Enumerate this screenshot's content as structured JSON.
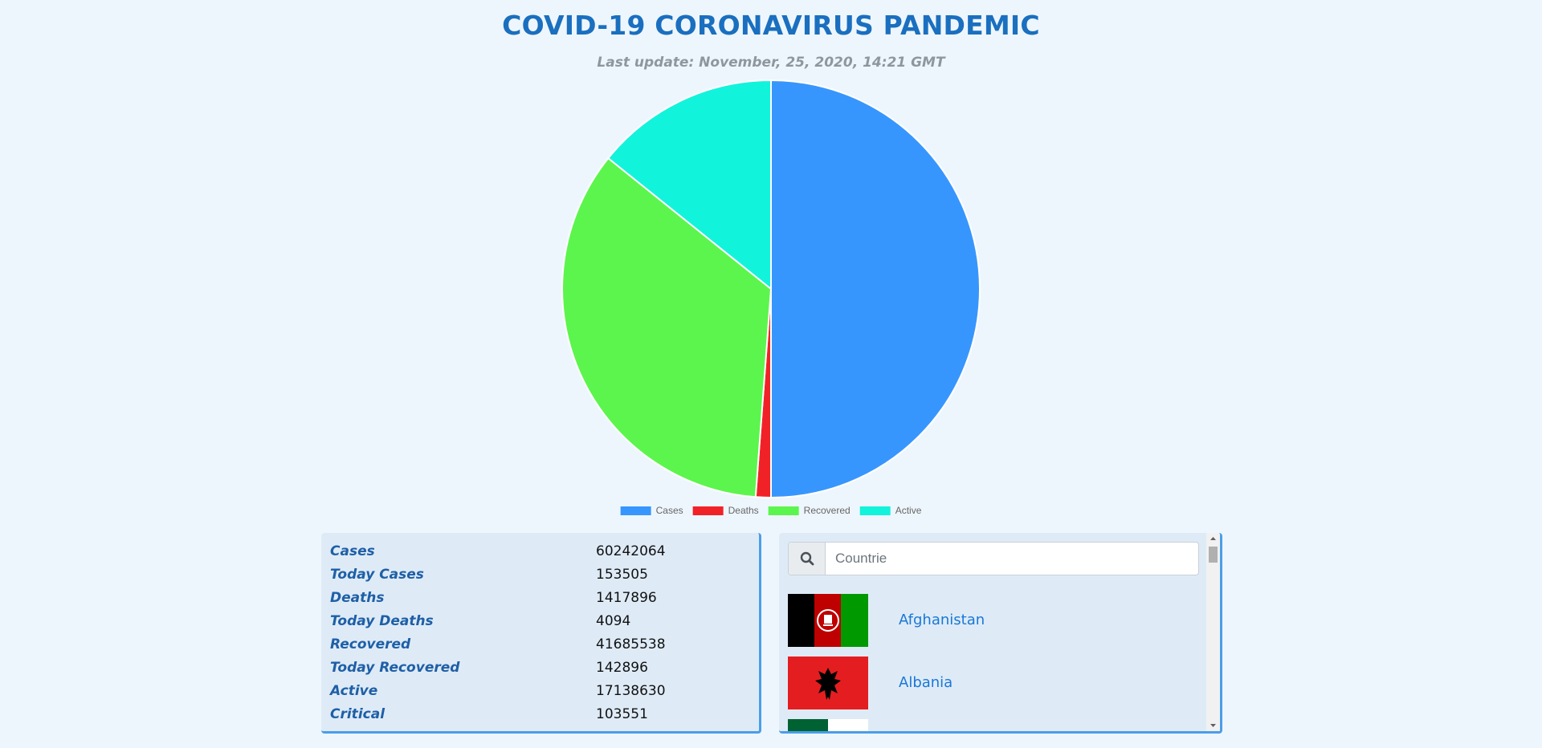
{
  "header": {
    "title": "COVID-19 CORONAVIRUS PANDEMIC",
    "last_update": "Last update: November, 25, 2020, 14:21 GMT"
  },
  "chart_data": {
    "type": "pie",
    "title": "",
    "categories": [
      "Cases",
      "Deaths",
      "Recovered",
      "Active"
    ],
    "values": [
      60242064,
      1417896,
      41685538,
      17138630
    ],
    "colors": [
      "#3796fd",
      "#f12227",
      "#5cf54d",
      "#12f3dc"
    ],
    "legend_position": "bottom"
  },
  "stats": [
    {
      "label": "Cases",
      "value": "60242064"
    },
    {
      "label": "Today Cases",
      "value": "153505"
    },
    {
      "label": "Deaths",
      "value": "1417896"
    },
    {
      "label": "Today Deaths",
      "value": "4094"
    },
    {
      "label": "Recovered",
      "value": "41685538"
    },
    {
      "label": "Today Recovered",
      "value": "142896"
    },
    {
      "label": "Active",
      "value": "17138630"
    },
    {
      "label": "Critical",
      "value": "103551"
    }
  ],
  "search": {
    "placeholder": "Countrie",
    "icon": "search-icon"
  },
  "countries": [
    {
      "name": "Afghanistan",
      "flag": "afghanistan-flag"
    },
    {
      "name": "Albania",
      "flag": "albania-flag"
    }
  ]
}
